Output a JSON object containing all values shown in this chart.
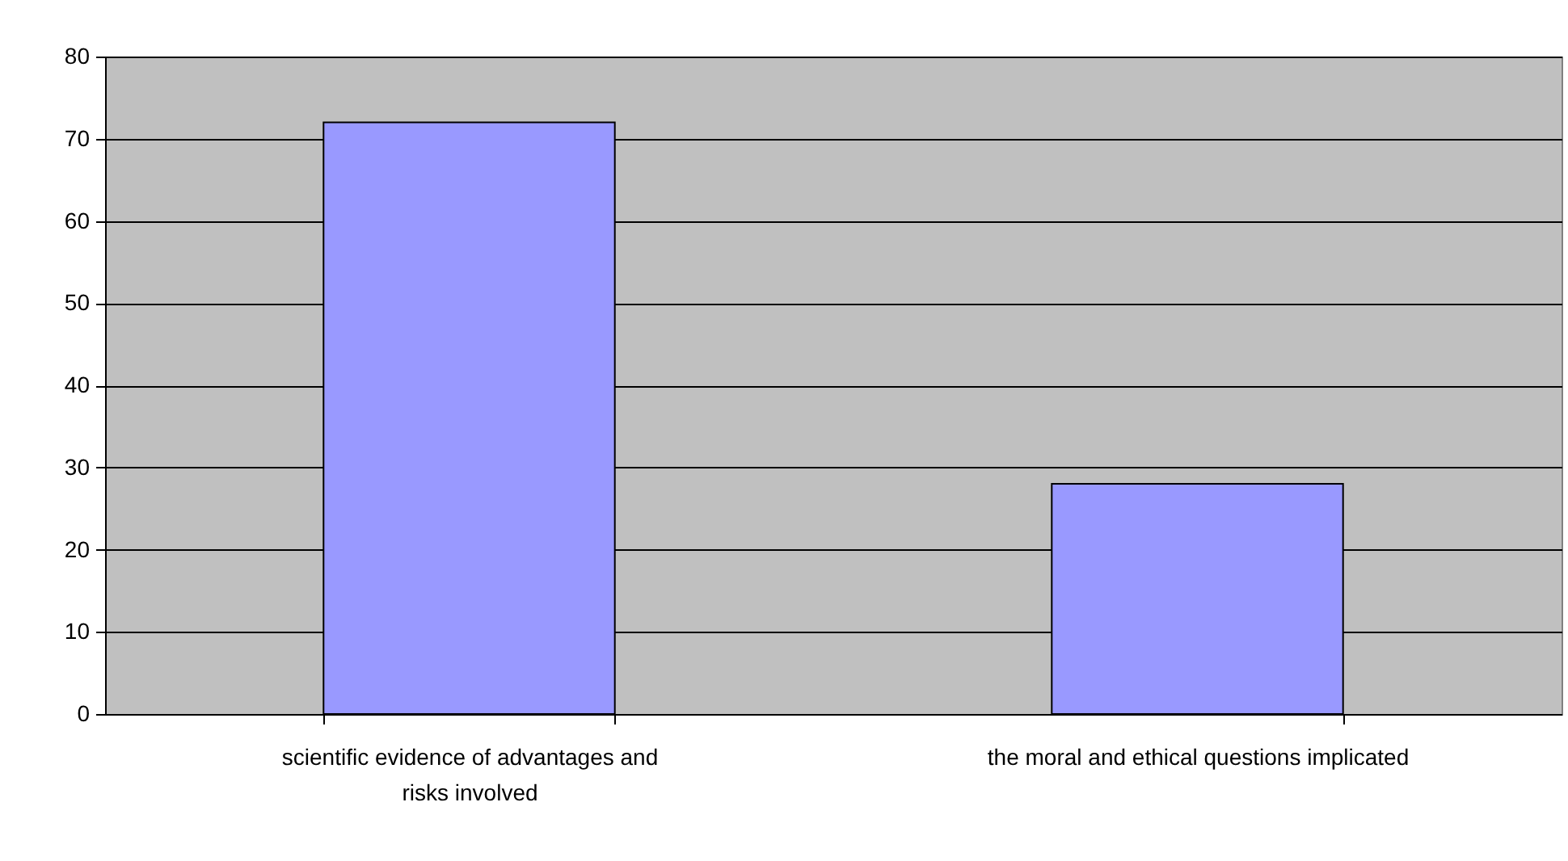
{
  "chart_data": {
    "type": "bar",
    "categories": [
      "scientific evidence of advantages and risks involved",
      "the moral and ethical questions implicated"
    ],
    "values": [
      72,
      28
    ],
    "color": "#9999ff",
    "ylim": [
      0,
      80
    ],
    "yticks": [
      0,
      10,
      20,
      30,
      40,
      50,
      60,
      70,
      80
    ],
    "grid": "y"
  }
}
